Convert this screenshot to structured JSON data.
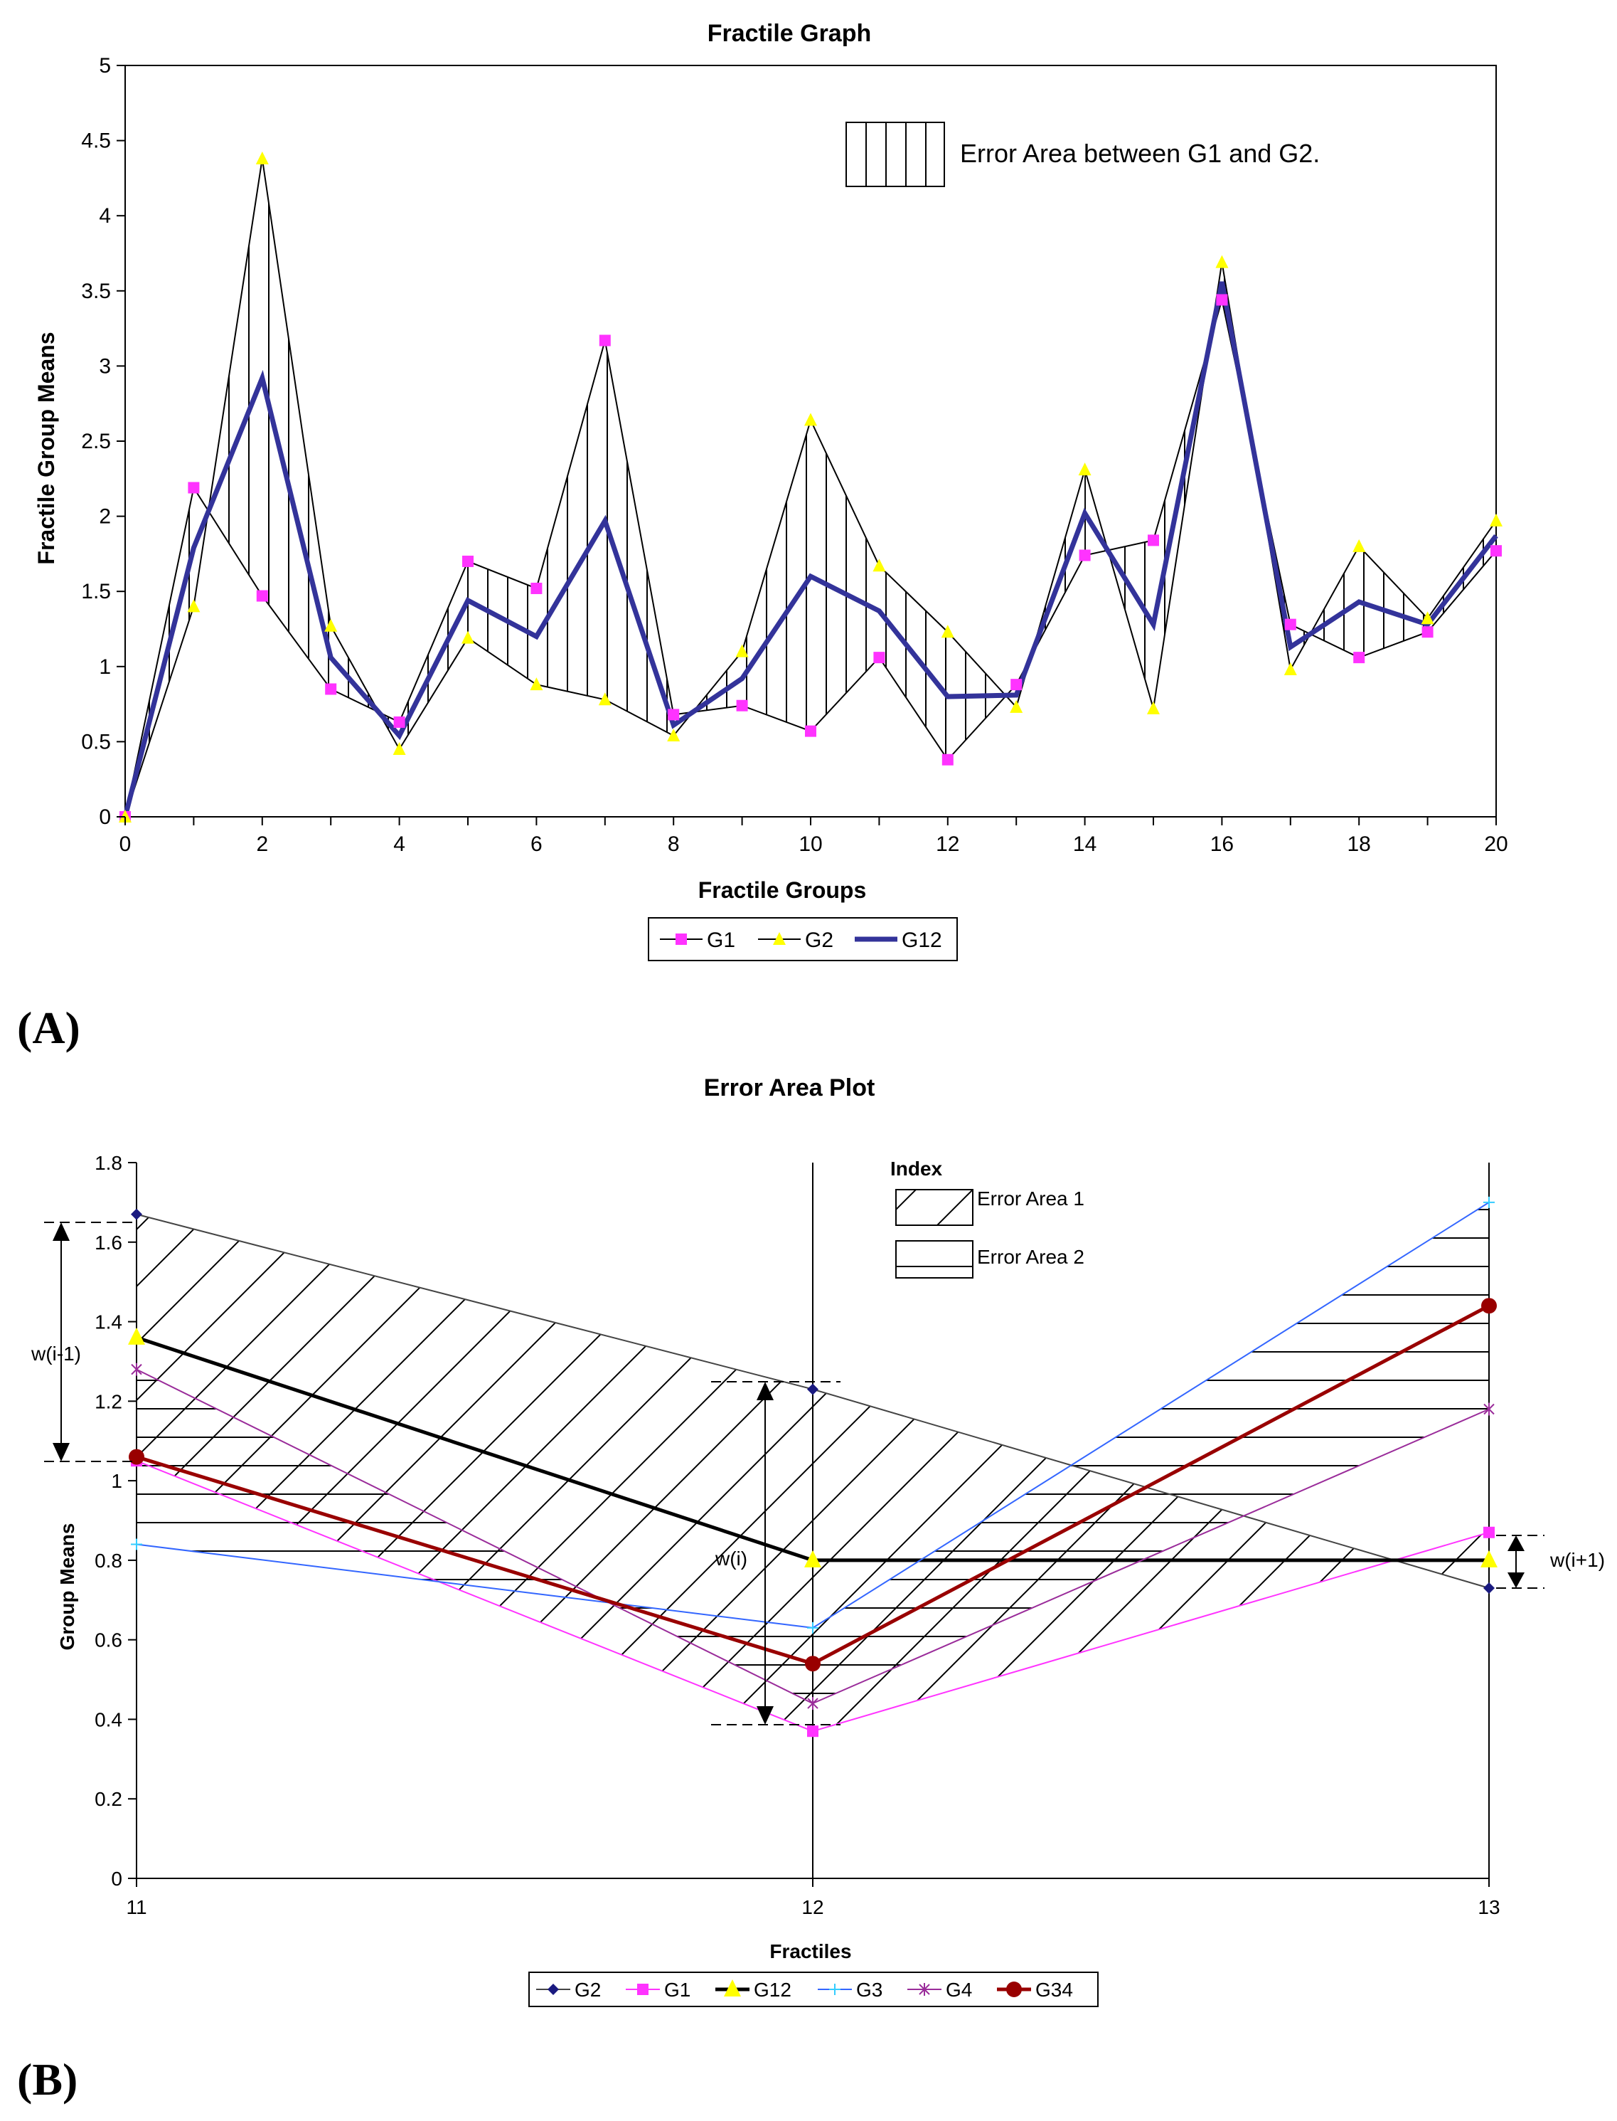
{
  "panel_labels": {
    "a": "(A)",
    "b": "(B)"
  },
  "colors": {
    "g1": "#ff33ff",
    "g2": "#ffff00",
    "g12": "#33339a",
    "g3": "#3366ff",
    "g4": "#9a2c9a",
    "g34": "#990000",
    "g2b": "#1a1a80"
  },
  "chart_data": [
    {
      "type": "line",
      "title": "Fractile Graph",
      "xlabel": "Fractile Groups",
      "ylabel": "Fractile Group Means",
      "xlim": [
        0,
        20
      ],
      "ylim": [
        0,
        5
      ],
      "xticks": [
        "0",
        "2",
        "4",
        "6",
        "8",
        "10",
        "12",
        "14",
        "16",
        "18",
        "20"
      ],
      "yticks": [
        "0",
        "0.5",
        "1",
        "1.5",
        "2",
        "2.5",
        "3",
        "3.5",
        "4",
        "4.5",
        "5"
      ],
      "x": [
        0,
        1,
        2,
        3,
        4,
        5,
        6,
        7,
        8,
        9,
        10,
        11,
        12,
        13,
        14,
        15,
        16,
        17,
        18,
        19,
        20
      ],
      "series": [
        {
          "name": "G1",
          "values": [
            0,
            2.19,
            1.47,
            0.85,
            0.63,
            1.7,
            1.52,
            3.17,
            0.68,
            0.74,
            0.57,
            1.06,
            0.38,
            0.88,
            1.74,
            1.84,
            3.44,
            1.28,
            1.06,
            1.23,
            1.77
          ]
        },
        {
          "name": "G2",
          "values": [
            0,
            1.4,
            4.38,
            1.27,
            0.45,
            1.19,
            0.88,
            0.78,
            0.54,
            1.1,
            2.64,
            1.67,
            1.23,
            0.73,
            2.31,
            0.72,
            3.69,
            0.98,
            1.8,
            1.32,
            1.97
          ]
        },
        {
          "name": "G12",
          "values": [
            0,
            1.79,
            2.92,
            1.06,
            0.54,
            1.44,
            1.2,
            1.97,
            0.61,
            0.92,
            1.6,
            1.37,
            0.8,
            0.81,
            2.02,
            1.28,
            3.56,
            1.13,
            1.43,
            1.28,
            1.87
          ]
        }
      ],
      "legend": [
        "G1",
        "G2",
        "G12"
      ],
      "annotation": "Error Area between G1 and G2."
    },
    {
      "type": "line",
      "title": "Error Area Plot",
      "xlabel": "Fractiles",
      "ylabel": "Group Means",
      "xlim": [
        11,
        13
      ],
      "ylim": [
        0,
        1.8
      ],
      "xticks": [
        "11",
        "12",
        "13"
      ],
      "yticks": [
        "0",
        "0.2",
        "0.4",
        "0.6",
        "0.8",
        "1",
        "1.2",
        "1.4",
        "1.6",
        "1.8"
      ],
      "x": [
        11,
        12,
        13
      ],
      "series": [
        {
          "name": "G2",
          "values": [
            1.67,
            1.23,
            0.73
          ]
        },
        {
          "name": "G1",
          "values": [
            1.05,
            0.37,
            0.87
          ]
        },
        {
          "name": "G12",
          "values": [
            1.36,
            0.8,
            0.8
          ]
        },
        {
          "name": "G3",
          "values": [
            0.84,
            0.63,
            1.7
          ]
        },
        {
          "name": "G4",
          "values": [
            1.28,
            0.44,
            1.18
          ]
        },
        {
          "name": "G34",
          "values": [
            1.06,
            0.54,
            1.44
          ]
        }
      ],
      "legend": [
        "G2",
        "G1",
        "G12",
        "G3",
        "G4",
        "G34"
      ],
      "index_title": "Index",
      "index_items": [
        "Error Area 1",
        "Error Area 2"
      ],
      "annotations": [
        "w(i-1)",
        "w(i)",
        "w(i+1)"
      ]
    }
  ]
}
